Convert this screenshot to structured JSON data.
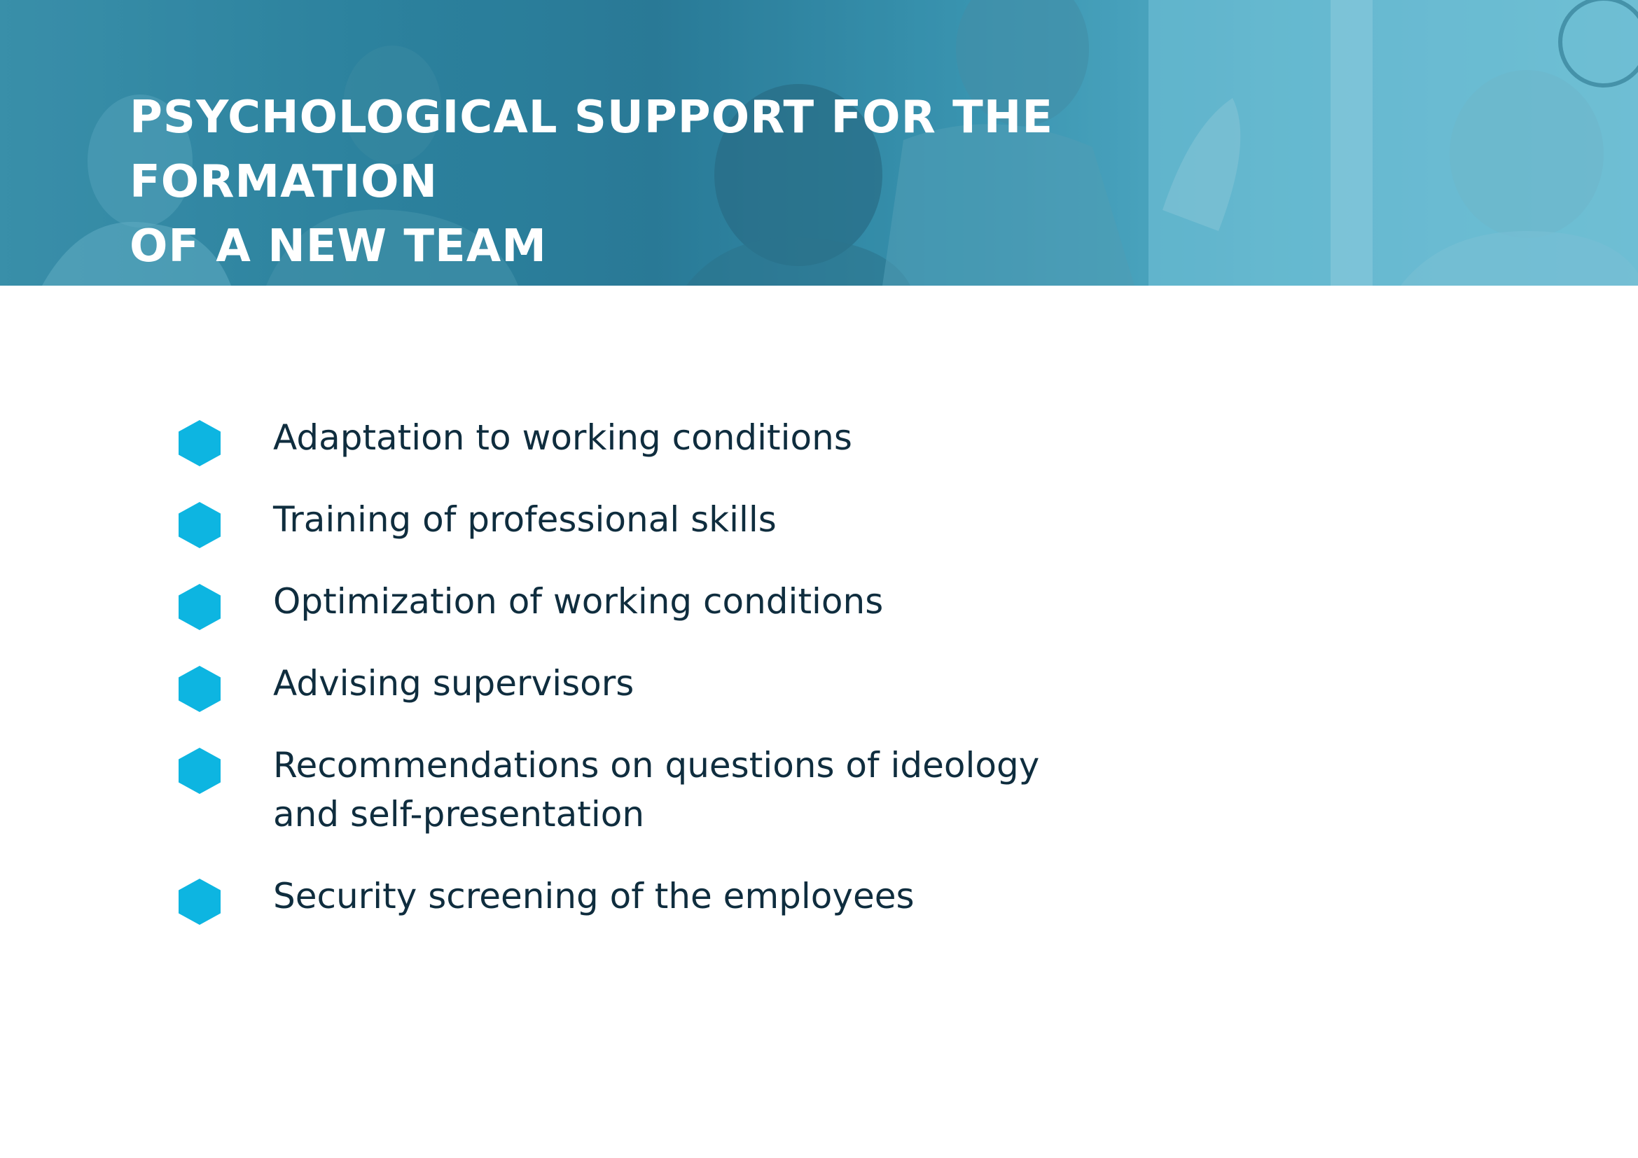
{
  "banner": {
    "title_line1": "PSYCHOLOGICAL SUPPORT FOR THE FORMATION",
    "title_line2": "OF A NEW TEAM",
    "overlay_color": "#2f8aa6"
  },
  "accent_color": "#0db5e1",
  "text_color": "#0f2d3e",
  "items": [
    {
      "icon": "hexagon-bullet-icon",
      "label": "Adaptation to working conditions"
    },
    {
      "icon": "hexagon-bullet-icon",
      "label": "Training of professional skills"
    },
    {
      "icon": "hexagon-bullet-icon",
      "label": "Optimization of working conditions"
    },
    {
      "icon": "hexagon-bullet-icon",
      "label": "Advising supervisors"
    },
    {
      "icon": "hexagon-bullet-icon",
      "label": "Recommendations on questions of ideology and self-presentation"
    },
    {
      "icon": "hexagon-bullet-icon",
      "label": "Security screening of the employees"
    }
  ]
}
